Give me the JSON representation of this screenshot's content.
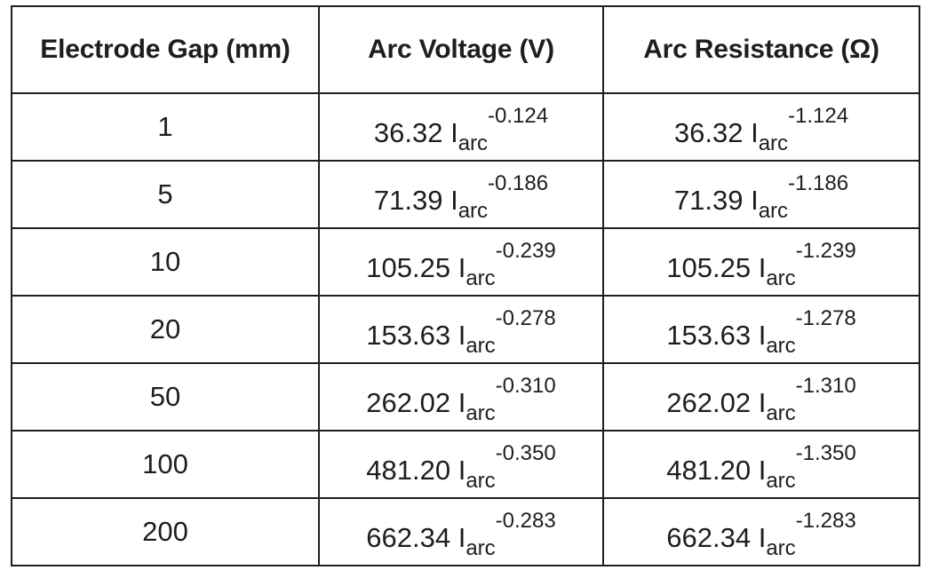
{
  "table": {
    "headers": [
      "Electrode Gap (mm)",
      "Arc Voltage (V)",
      "Arc Resistance (Ω)"
    ],
    "rows": [
      {
        "gap": "1",
        "v_coef": "36.32",
        "v_exp": "-0.124",
        "r_coef": "36.32",
        "r_exp": "-1.124"
      },
      {
        "gap": "5",
        "v_coef": "71.39",
        "v_exp": "-0.186",
        "r_coef": "71.39",
        "r_exp": "-1.186"
      },
      {
        "gap": "10",
        "v_coef": "105.25",
        "v_exp": "-0.239",
        "r_coef": "105.25",
        "r_exp": "-1.239"
      },
      {
        "gap": "20",
        "v_coef": "153.63",
        "v_exp": "-0.278",
        "r_coef": "153.63",
        "r_exp": "-1.278"
      },
      {
        "gap": "50",
        "v_coef": "262.02",
        "v_exp": "-0.310",
        "r_coef": "262.02",
        "r_exp": "-1.310"
      },
      {
        "gap": "100",
        "v_coef": "481.20",
        "v_exp": "-0.350",
        "r_coef": "481.20",
        "r_exp": "-1.350"
      },
      {
        "gap": "200",
        "v_coef": "662.34",
        "v_exp": "-0.283",
        "r_coef": "662.34",
        "r_exp": "-1.283"
      }
    ],
    "current_symbol": "I",
    "current_subscript": "arc"
  }
}
